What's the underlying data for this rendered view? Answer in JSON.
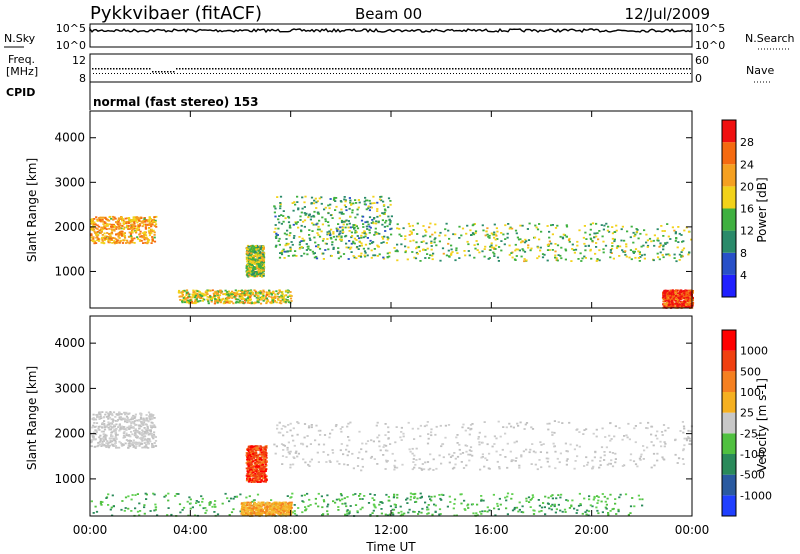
{
  "header": {
    "station": "Pykkvibaer (fitACF)",
    "beam": "Beam 00",
    "date": "12/Jul/2009"
  },
  "panels": {
    "nsky": {
      "left_label": "N.Sky",
      "right_label": "N.Search",
      "left_ticks": [
        "10^5",
        "10^0"
      ],
      "right_ticks": [
        "10^5",
        "10^0"
      ]
    },
    "freq": {
      "label_line1": "Freq.",
      "label_line2": "[MHz]",
      "right_label": "Nave",
      "left_ticks": [
        "12",
        "8"
      ],
      "right_ticks": [
        "60",
        "0"
      ]
    },
    "cpid": {
      "label": "CPID",
      "text": "normal (fast stereo) 153"
    }
  },
  "chart_data": [
    {
      "type": "heatmap",
      "name": "power",
      "xlabel": "",
      "ylabel": "Slant Range [km]",
      "x_ticks": [
        "00:00",
        "04:00",
        "08:00",
        "12:00",
        "16:00",
        "20:00",
        "00:00"
      ],
      "xlim": [
        0,
        24
      ],
      "ylim": [
        180,
        4600
      ],
      "y_ticks": [
        1000,
        2000,
        3000,
        4000
      ],
      "colorbar": {
        "label": "Power [dB]",
        "ticks": [
          "28",
          "24",
          "20",
          "16",
          "12",
          "8",
          "4"
        ],
        "colors": [
          "#2020ff",
          "#2850c8",
          "#2a8a6a",
          "#3fb040",
          "#f2d21a",
          "#f5a020",
          "#f56a10",
          "#f01010"
        ]
      },
      "features": [
        {
          "t0": 0.0,
          "t1": 2.6,
          "r0": 1650,
          "r1": 2250,
          "level": 0.7
        },
        {
          "t0": 6.2,
          "t1": 6.9,
          "r0": 900,
          "r1": 1600,
          "level": 0.5
        },
        {
          "t0": 7.3,
          "t1": 12.0,
          "r0": 1300,
          "r1": 2700,
          "level": 0.4
        },
        {
          "t0": 12.0,
          "t1": 24.0,
          "r0": 1250,
          "r1": 2100,
          "level": 0.45
        },
        {
          "t0": 3.5,
          "t1": 8.0,
          "r0": 300,
          "r1": 600,
          "level": 0.6
        },
        {
          "t0": 22.8,
          "t1": 24.0,
          "r0": 200,
          "r1": 600,
          "level": 0.95
        }
      ]
    },
    {
      "type": "heatmap",
      "name": "velocity",
      "xlabel": "Time UT",
      "ylabel": "Slant Range [km]",
      "x_ticks": [
        "00:00",
        "04:00",
        "08:00",
        "12:00",
        "16:00",
        "20:00",
        "00:00"
      ],
      "xlim": [
        0,
        24
      ],
      "ylim": [
        180,
        4600
      ],
      "y_ticks": [
        1000,
        2000,
        3000,
        4000
      ],
      "colorbar": {
        "label": "Velocity [m s-1]",
        "ticks": [
          "1000",
          "500",
          "100",
          "25",
          "-25",
          "-100",
          "-500",
          "-1000"
        ],
        "colors": [
          "#2040ff",
          "#2a5aa0",
          "#2a8a5a",
          "#50c040",
          "#c8c8c8",
          "#f5b020",
          "#f58020",
          "#f04010",
          "#ff0000"
        ]
      },
      "features": [
        {
          "t0": 0.0,
          "t1": 2.6,
          "r0": 1700,
          "r1": 2500,
          "level": "gray"
        },
        {
          "t0": 6.2,
          "t1": 7.0,
          "r0": 950,
          "r1": 1750,
          "level": "red"
        },
        {
          "t0": 7.3,
          "t1": 24.0,
          "r0": 1200,
          "r1": 2300,
          "level": "gray"
        },
        {
          "t0": 0.0,
          "t1": 22.0,
          "r0": 200,
          "r1": 700,
          "level": "green"
        },
        {
          "t0": 6.0,
          "t1": 8.0,
          "r0": 200,
          "r1": 500,
          "level": "orange"
        }
      ]
    }
  ]
}
